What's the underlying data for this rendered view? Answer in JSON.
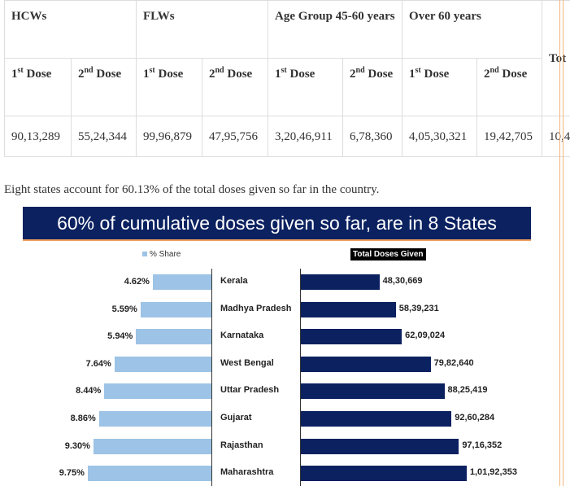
{
  "table": {
    "groups": [
      "HCWs",
      "FLWs",
      "Age Group 45-60 years",
      "Over 60 years",
      "Tot"
    ],
    "doses": [
      [
        "1",
        "st",
        " Dose"
      ],
      [
        "2",
        "nd",
        " Dose"
      ],
      [
        "1",
        "st",
        " Dose"
      ],
      [
        "2",
        "nd",
        " Dose"
      ],
      [
        "1",
        "st",
        " Dose"
      ],
      [
        "2",
        "nd",
        " Dose"
      ],
      [
        "1",
        "st",
        " Dose"
      ],
      [
        "2",
        "nd",
        " Dose"
      ]
    ],
    "values": [
      "90,13,289",
      "55,24,344",
      "99,96,879",
      "47,95,756",
      "3,20,46,911",
      "6,78,360",
      "4,05,30,321",
      "19,42,705",
      "10,4"
    ]
  },
  "paragraph": "Eight states account for 60.13% of the total doses given so far in the country.",
  "chart_data": {
    "type": "bar",
    "title": "60% of cumulative doses given so far, are in 8 States",
    "categories": [
      "Kerala",
      "Madhya Pradesh",
      "Karnataka",
      "West Bengal",
      "Uttar Pradesh",
      "Gujarat",
      "Rajasthan",
      "Maharashtra"
    ],
    "series": [
      {
        "name": "% Share",
        "values": [
          4.62,
          5.59,
          5.94,
          7.64,
          8.44,
          8.86,
          9.3,
          9.75
        ],
        "labels": [
          "4.62%",
          "5.59%",
          "5.94%",
          "7.64%",
          "8.44%",
          "8.86%",
          "9.30%",
          "9.75%"
        ],
        "color": "#9dc3e6"
      },
      {
        "name": "Total Doses Given",
        "values": [
          4830669,
          5839231,
          6209024,
          7982640,
          8825419,
          9260284,
          9716352,
          10192353
        ],
        "labels": [
          "48,30,669",
          "58,39,231",
          "62,09,024",
          "79,82,640",
          "88,25,419",
          "92,60,284",
          "97,16,352",
          "1,01,92,353"
        ],
        "color": "#0b2160"
      }
    ]
  }
}
